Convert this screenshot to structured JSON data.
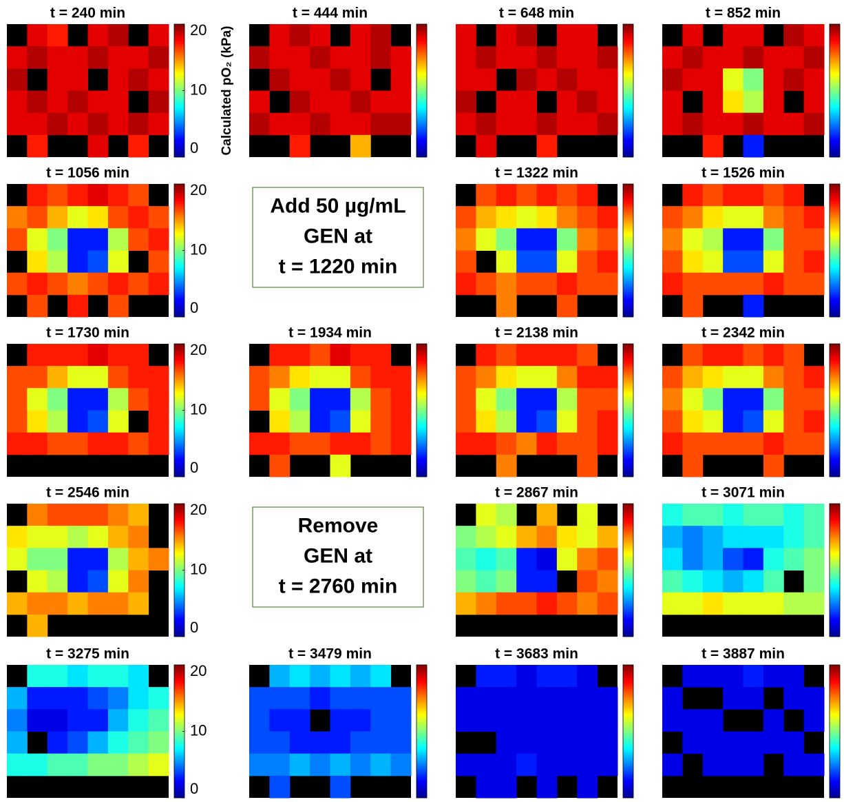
{
  "chart_data": [
    {
      "type": "heatmap",
      "title": "t = 240 min",
      "zlim": [
        0,
        20
      ],
      "zticks": [
        0,
        10,
        20
      ],
      "zlabel": "Calculated pO₂ (kPa)",
      "colormap": "jet",
      "z": [
        [
          null,
          18,
          17,
          null,
          18,
          19,
          null,
          18
        ],
        [
          18,
          19,
          18,
          18,
          19,
          18,
          18,
          19
        ],
        [
          19,
          null,
          18,
          18,
          null,
          18,
          19,
          18
        ],
        [
          18,
          19,
          18,
          19,
          18,
          18,
          null,
          19
        ],
        [
          18,
          18,
          19,
          18,
          19,
          18,
          19,
          18
        ],
        [
          null,
          17,
          null,
          null,
          18,
          null,
          17,
          null
        ]
      ]
    },
    {
      "type": "heatmap",
      "title": "t = 444 min",
      "zlim": [
        0,
        20
      ],
      "colormap": "jet",
      "z": [
        [
          null,
          18,
          19,
          18,
          null,
          18,
          19,
          null
        ],
        [
          19,
          18,
          18,
          19,
          18,
          18,
          19,
          18
        ],
        [
          null,
          19,
          18,
          18,
          19,
          18,
          null,
          18
        ],
        [
          18,
          null,
          19,
          18,
          18,
          19,
          18,
          18
        ],
        [
          19,
          18,
          18,
          19,
          18,
          18,
          19,
          19
        ],
        [
          null,
          null,
          17,
          null,
          null,
          14,
          null,
          null
        ]
      ]
    },
    {
      "type": "heatmap",
      "title": "t = 648 min",
      "zlim": [
        0,
        20
      ],
      "colormap": "jet",
      "z": [
        [
          18,
          null,
          18,
          19,
          null,
          18,
          18,
          null
        ],
        [
          18,
          19,
          18,
          18,
          19,
          18,
          18,
          19
        ],
        [
          18,
          18,
          null,
          19,
          18,
          19,
          18,
          18
        ],
        [
          19,
          null,
          18,
          18,
          null,
          18,
          19,
          18
        ],
        [
          18,
          19,
          18,
          18,
          19,
          18,
          18,
          19
        ],
        [
          null,
          18,
          null,
          null,
          17,
          null,
          null,
          null
        ]
      ]
    },
    {
      "type": "heatmap",
      "title": "t = 852 min",
      "zlim": [
        0,
        20
      ],
      "colormap": "jet",
      "z": [
        [
          null,
          18,
          null,
          18,
          18,
          null,
          19,
          18
        ],
        [
          18,
          19,
          18,
          18,
          19,
          18,
          18,
          19
        ],
        [
          19,
          18,
          18,
          12,
          10,
          18,
          19,
          18
        ],
        [
          18,
          null,
          18,
          13,
          11,
          18,
          null,
          18
        ],
        [
          18,
          19,
          18,
          18,
          19,
          18,
          18,
          19
        ],
        [
          null,
          null,
          17,
          null,
          3,
          null,
          null,
          null
        ]
      ]
    },
    {
      "type": "heatmap",
      "title": "t = 1056 min",
      "zlim": [
        0,
        20
      ],
      "zticks": [
        0,
        10,
        20
      ],
      "colormap": "jet",
      "z": [
        [
          null,
          17,
          16,
          17,
          18,
          17,
          16,
          null
        ],
        [
          15,
          16,
          14,
          12,
          13,
          16,
          17,
          16
        ],
        [
          16,
          12,
          10,
          3,
          3,
          11,
          16,
          17
        ],
        [
          null,
          13,
          11,
          3,
          4,
          12,
          null,
          16
        ],
        [
          16,
          17,
          16,
          15,
          16,
          17,
          16,
          17
        ],
        [
          null,
          16,
          null,
          17,
          null,
          16,
          null,
          null
        ]
      ]
    },
    {
      "type": "heatmap",
      "title": "t = 1322 min",
      "zlim": [
        0,
        20
      ],
      "colormap": "jet",
      "z": [
        [
          null,
          16,
          17,
          16,
          17,
          16,
          17,
          null
        ],
        [
          16,
          14,
          13,
          12,
          13,
          15,
          16,
          17
        ],
        [
          15,
          12,
          10,
          3,
          3,
          10,
          15,
          16
        ],
        [
          16,
          null,
          12,
          4,
          4,
          12,
          16,
          17
        ],
        [
          17,
          16,
          15,
          16,
          16,
          17,
          16,
          16
        ],
        [
          null,
          null,
          15,
          null,
          null,
          16,
          null,
          null
        ]
      ]
    },
    {
      "type": "heatmap",
      "title": "t = 1526 min",
      "zlim": [
        0,
        20
      ],
      "colormap": "jet",
      "z": [
        [
          null,
          17,
          16,
          17,
          17,
          16,
          17,
          null
        ],
        [
          16,
          15,
          13,
          12,
          12,
          15,
          16,
          17
        ],
        [
          15,
          12,
          11,
          3,
          3,
          10,
          16,
          16
        ],
        [
          16,
          13,
          12,
          4,
          4,
          12,
          16,
          17
        ],
        [
          17,
          16,
          16,
          16,
          16,
          17,
          16,
          16
        ],
        [
          null,
          16,
          null,
          null,
          3,
          null,
          null,
          null
        ]
      ]
    },
    {
      "type": "heatmap",
      "title": "t = 1730 min",
      "zlim": [
        0,
        20
      ],
      "zticks": [
        0,
        10,
        20
      ],
      "colormap": "jet",
      "z": [
        [
          null,
          17,
          17,
          17,
          18,
          17,
          17,
          null
        ],
        [
          16,
          16,
          14,
          12,
          12,
          16,
          17,
          17
        ],
        [
          16,
          12,
          10,
          3,
          3,
          11,
          16,
          17
        ],
        [
          16,
          13,
          11,
          3,
          4,
          12,
          null,
          17
        ],
        [
          17,
          17,
          16,
          16,
          17,
          17,
          16,
          17
        ],
        [
          null,
          null,
          null,
          null,
          null,
          null,
          null,
          null
        ]
      ]
    },
    {
      "type": "heatmap",
      "title": "t = 1934 min",
      "zlim": [
        0,
        20
      ],
      "colormap": "jet",
      "z": [
        [
          null,
          17,
          17,
          16,
          18,
          17,
          17,
          null
        ],
        [
          16,
          15,
          13,
          12,
          12,
          16,
          17,
          17
        ],
        [
          16,
          12,
          10,
          3,
          3,
          11,
          16,
          17
        ],
        [
          null,
          13,
          11,
          3,
          4,
          12,
          16,
          17
        ],
        [
          17,
          17,
          16,
          16,
          17,
          17,
          16,
          17
        ],
        [
          null,
          16,
          null,
          null,
          12,
          null,
          null,
          null
        ]
      ]
    },
    {
      "type": "heatmap",
      "title": "t = 2138 min",
      "zlim": [
        0,
        20
      ],
      "colormap": "jet",
      "z": [
        [
          null,
          17,
          16,
          17,
          17,
          17,
          16,
          null
        ],
        [
          16,
          15,
          13,
          12,
          12,
          15,
          17,
          17
        ],
        [
          16,
          12,
          10,
          3,
          3,
          11,
          16,
          16
        ],
        [
          16,
          13,
          11,
          3,
          4,
          12,
          16,
          17
        ],
        [
          17,
          17,
          16,
          15,
          17,
          16,
          16,
          17
        ],
        [
          null,
          null,
          15,
          null,
          null,
          null,
          16,
          null
        ]
      ]
    },
    {
      "type": "heatmap",
      "title": "t = 2342 min",
      "zlim": [
        0,
        20
      ],
      "colormap": "jet",
      "z": [
        [
          null,
          16,
          17,
          17,
          16,
          17,
          16,
          null
        ],
        [
          16,
          14,
          13,
          12,
          12,
          15,
          16,
          17
        ],
        [
          15,
          12,
          10,
          3,
          3,
          10,
          16,
          16
        ],
        [
          16,
          13,
          12,
          3,
          4,
          12,
          16,
          17
        ],
        [
          17,
          16,
          16,
          16,
          16,
          17,
          16,
          16
        ],
        [
          null,
          16,
          null,
          null,
          null,
          16,
          null,
          null
        ]
      ]
    },
    {
      "type": "heatmap",
      "title": "t = 2546 min",
      "zlim": [
        0,
        20
      ],
      "zticks": [
        0,
        10,
        20
      ],
      "colormap": "jet",
      "z": [
        [
          null,
          15,
          16,
          16,
          16,
          15,
          14,
          null
        ],
        [
          13,
          12,
          12,
          11,
          12,
          14,
          15,
          null
        ],
        [
          12,
          10,
          10,
          3,
          3,
          11,
          14,
          15
        ],
        [
          null,
          12,
          11,
          3,
          4,
          12,
          15,
          null
        ],
        [
          14,
          15,
          15,
          14,
          15,
          15,
          14,
          null
        ],
        [
          null,
          14,
          null,
          null,
          null,
          null,
          null,
          null
        ]
      ]
    },
    {
      "type": "heatmap",
      "title": "t = 2867 min",
      "zlim": [
        0,
        20
      ],
      "colormap": "jet",
      "z": [
        [
          null,
          12,
          11,
          null,
          14,
          null,
          12,
          null
        ],
        [
          10,
          11,
          12,
          14,
          15,
          13,
          12,
          14
        ],
        [
          9,
          8,
          9,
          3,
          2,
          12,
          15,
          16
        ],
        [
          10,
          9,
          10,
          3,
          3,
          null,
          16,
          15
        ],
        [
          14,
          15,
          16,
          16,
          17,
          16,
          15,
          16
        ],
        [
          null,
          null,
          null,
          null,
          null,
          null,
          null,
          null
        ]
      ]
    },
    {
      "type": "heatmap",
      "title": "t = 3071 min",
      "zlim": [
        0,
        20
      ],
      "colormap": "jet",
      "z": [
        [
          8,
          9,
          9,
          8,
          9,
          9,
          8,
          9
        ],
        [
          6,
          5,
          6,
          7,
          7,
          7,
          8,
          9
        ],
        [
          7,
          5,
          6,
          4,
          3,
          8,
          9,
          10
        ],
        [
          9,
          8,
          7,
          6,
          7,
          9,
          null,
          10
        ],
        [
          12,
          12,
          13,
          12,
          12,
          12,
          11,
          11
        ],
        [
          null,
          null,
          null,
          null,
          null,
          null,
          null,
          null
        ]
      ]
    },
    {
      "type": "heatmap",
      "title": "t = 3275 min",
      "zlim": [
        0,
        20
      ],
      "zticks": [
        0,
        10,
        20
      ],
      "colormap": "jet",
      "z": [
        [
          null,
          8,
          8,
          7,
          8,
          8,
          7,
          null
        ],
        [
          6,
          3,
          3,
          3,
          4,
          5,
          7,
          8
        ],
        [
          5,
          2,
          2,
          3,
          3,
          6,
          8,
          9
        ],
        [
          6,
          null,
          3,
          4,
          6,
          8,
          9,
          10
        ],
        [
          8,
          8,
          9,
          9,
          10,
          10,
          11,
          12
        ],
        [
          null,
          null,
          null,
          null,
          null,
          null,
          null,
          null
        ]
      ]
    },
    {
      "type": "heatmap",
      "title": "t = 3479 min",
      "zlim": [
        0,
        20
      ],
      "colormap": "jet",
      "z": [
        [
          null,
          6,
          7,
          6,
          7,
          6,
          7,
          null
        ],
        [
          4,
          4,
          4,
          3,
          4,
          4,
          4,
          4
        ],
        [
          4,
          3,
          3,
          null,
          3,
          3,
          4,
          4
        ],
        [
          4,
          4,
          3,
          3,
          3,
          4,
          4,
          4
        ],
        [
          5,
          5,
          6,
          5,
          6,
          5,
          6,
          5
        ],
        [
          null,
          4,
          null,
          null,
          4,
          null,
          null,
          null
        ]
      ]
    },
    {
      "type": "heatmap",
      "title": "t = 3683 min",
      "zlim": [
        0,
        20
      ],
      "colormap": "jet",
      "z": [
        [
          null,
          3,
          3,
          2,
          3,
          3,
          2,
          null
        ],
        [
          2,
          2,
          2,
          2,
          2,
          2,
          2,
          2
        ],
        [
          2,
          2,
          2,
          2,
          2,
          2,
          2,
          2
        ],
        [
          null,
          null,
          2,
          2,
          2,
          2,
          2,
          2
        ],
        [
          2,
          2,
          2,
          3,
          2,
          2,
          2,
          2
        ],
        [
          null,
          2,
          2,
          null,
          2,
          null,
          2,
          null
        ]
      ]
    },
    {
      "type": "heatmap",
      "title": "t = 3887 min",
      "zlim": [
        0,
        20
      ],
      "colormap": "jet",
      "z": [
        [
          null,
          2,
          2,
          2,
          3,
          2,
          2,
          null
        ],
        [
          2,
          null,
          null,
          2,
          2,
          null,
          2,
          2
        ],
        [
          2,
          2,
          2,
          null,
          null,
          2,
          null,
          2
        ],
        [
          null,
          2,
          2,
          2,
          2,
          2,
          2,
          null
        ],
        [
          2,
          null,
          2,
          2,
          2,
          null,
          2,
          2
        ],
        [
          null,
          null,
          null,
          null,
          null,
          null,
          null,
          null
        ]
      ]
    }
  ],
  "annotations": [
    {
      "lines": [
        "Add 50 µg/mL",
        "GEN at",
        "t = 1220 min"
      ]
    },
    {
      "lines": [
        "Remove",
        "GEN at",
        "t = 2760 min"
      ]
    }
  ]
}
